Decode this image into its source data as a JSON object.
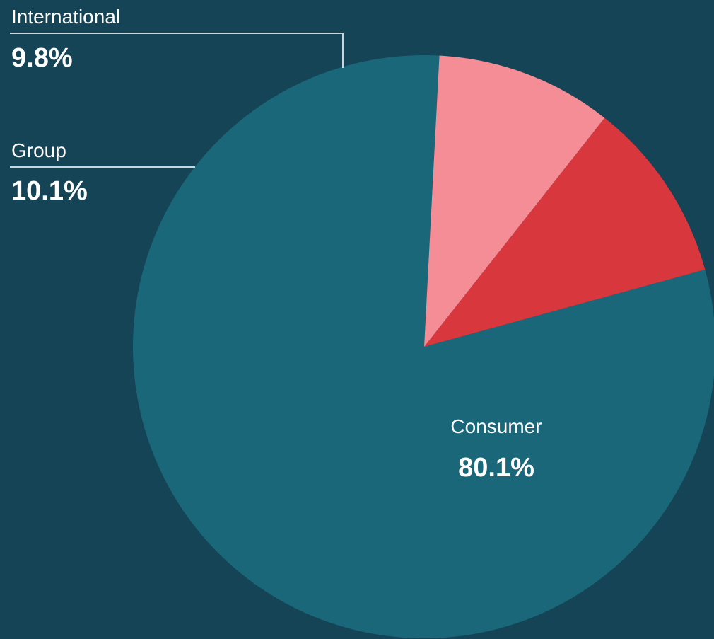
{
  "chart_data": {
    "type": "pie",
    "title": "",
    "start_angle_deg": 3,
    "direction": "counterclockwise",
    "slices": [
      {
        "label": "Consumer",
        "value": 80.1,
        "value_label": "80.1%",
        "color": "#1a677a",
        "label_placement": "inside"
      },
      {
        "label": "Group",
        "value": 10.1,
        "value_label": "10.1%",
        "color": "#d9373e",
        "label_placement": "outside-left"
      },
      {
        "label": "International",
        "value": 9.8,
        "value_label": "9.8%",
        "color": "#f48d96",
        "label_placement": "outside-left"
      }
    ]
  },
  "colors": {
    "background": "#164457",
    "text": "#ffffff",
    "leader_line": "#c9d6dc"
  }
}
